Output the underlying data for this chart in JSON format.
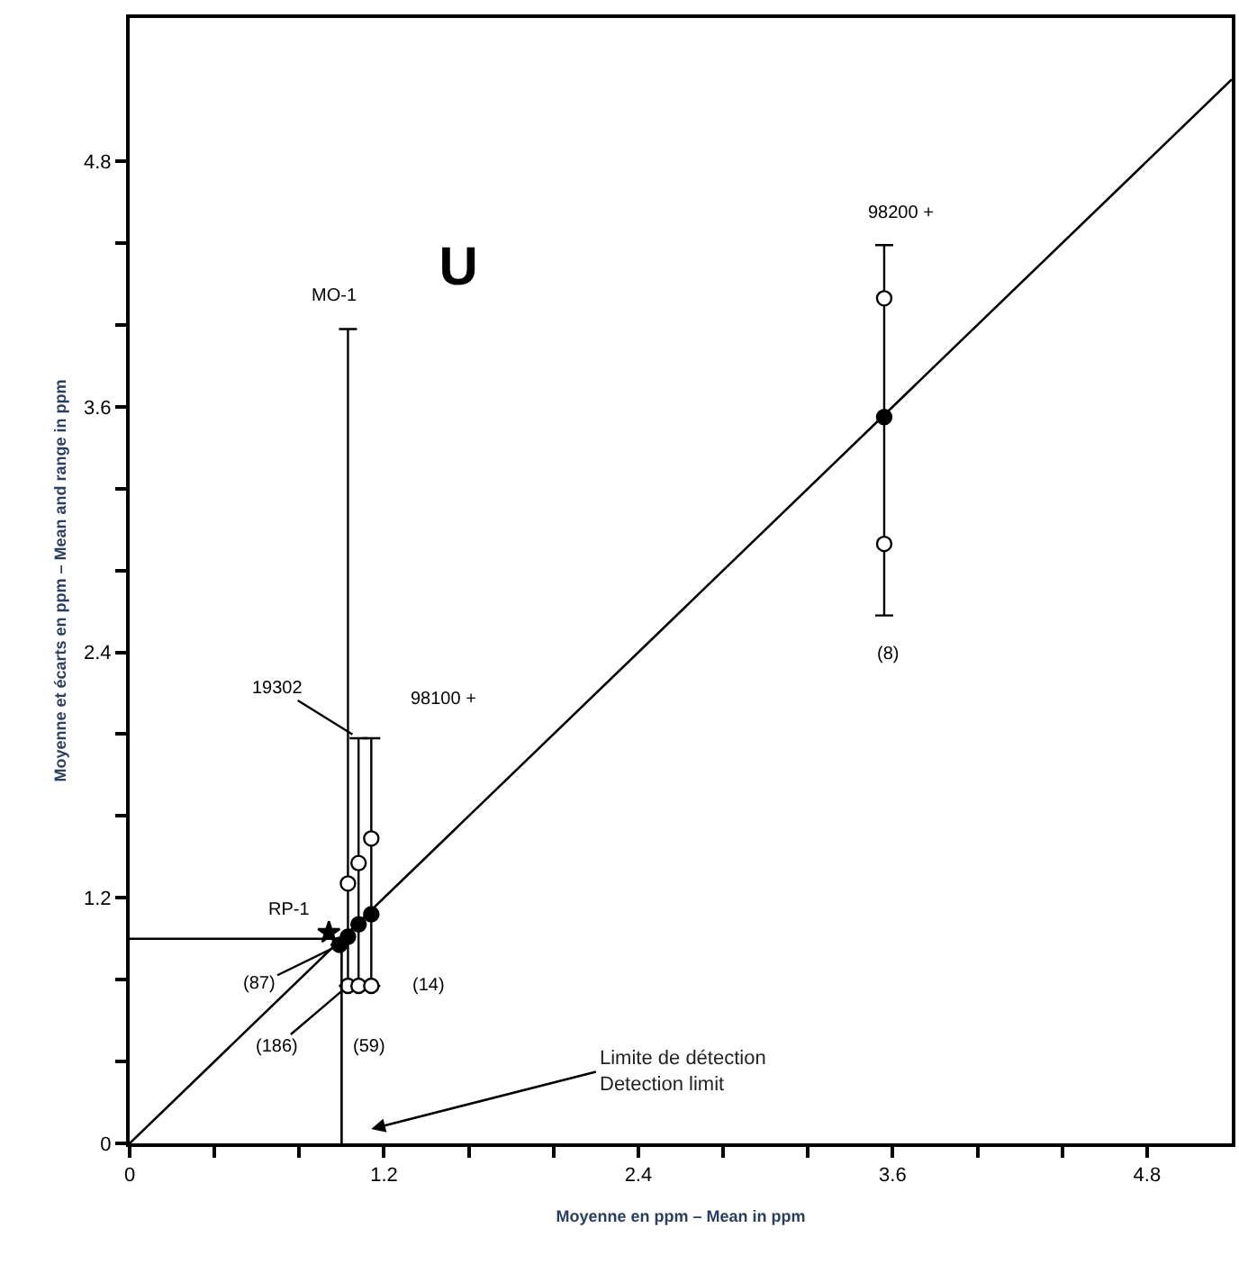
{
  "chart_data": {
    "type": "scatter",
    "title": "U",
    "xlabel": "Moyenne en ppm – Mean in ppm",
    "ylabel": "Moyenne et écarts en ppm – Mean and range in ppm",
    "xlim": [
      0,
      5.2
    ],
    "ylim": [
      0,
      5.5
    ],
    "xticks": [
      0,
      {
        "value": 0.4,
        "label": null
      },
      {
        "value": 0.8,
        "label": null
      },
      1.2,
      {
        "value": 1.6,
        "label": null
      },
      {
        "value": 2.0,
        "label": null
      },
      2.4,
      {
        "value": 2.8,
        "label": null
      },
      {
        "value": 3.2,
        "label": null
      },
      3.6,
      {
        "value": 4.0,
        "label": null
      },
      {
        "value": 4.4,
        "label": null
      },
      4.8
    ],
    "yticks": [
      0,
      {
        "value": 0.4,
        "label": null
      },
      {
        "value": 0.8,
        "label": null
      },
      1.2,
      {
        "value": 1.6,
        "label": null
      },
      {
        "value": 2.0,
        "label": null
      },
      2.4,
      {
        "value": 2.8,
        "label": null
      },
      {
        "value": 3.2,
        "label": null
      },
      3.6,
      {
        "value": 4.0,
        "label": null
      },
      {
        "value": 4.4,
        "label": null
      },
      4.8
    ],
    "series": [
      {
        "type": "line",
        "color": "#000000",
        "marker": "none",
        "x": [
          0,
          5.2
        ],
        "values": [
          0,
          5.2
        ]
      },
      {
        "color": "#000000",
        "marker": "circle",
        "x": [
          0.99,
          1.03,
          1.08,
          1.14,
          3.56
        ],
        "values": [
          0.97,
          1.01,
          1.07,
          1.12,
          3.55
        ],
        "errors": [
          null,
          [
            0.77,
            3.98
          ],
          [
            0.77,
            1.98
          ],
          [
            0.77,
            1.98
          ],
          [
            2.58,
            4.39
          ]
        ]
      },
      {
        "color": "#ffffff",
        "marker": "circle",
        "x": [
          1.03,
          1.08,
          1.14,
          3.56
        ],
        "values": [
          1.27,
          1.37,
          1.49,
          4.13
        ]
      },
      {
        "color": "#ffffff",
        "marker": "circle",
        "x": [
          1.03,
          1.08,
          1.14,
          3.56
        ],
        "values": [
          0.77,
          0.77,
          0.77,
          2.93
        ]
      },
      {
        "color": "#000000",
        "marker": "star",
        "x": [
          0.94
        ],
        "values": [
          1.03
        ]
      }
    ],
    "ref_lines": [
      {
        "axis": "x",
        "value": 1.0,
        "label": "Limite de détection\nDetection limit"
      },
      {
        "axis": "y",
        "value": 1.0
      }
    ],
    "annotations": [
      {
        "text": "MO-1",
        "x": 1.03,
        "y": 3.98
      },
      {
        "text": "98200 +",
        "x": 3.56,
        "y": 4.39
      },
      {
        "text": "19302",
        "x": 1.08,
        "y": 1.98
      },
      {
        "text": "98100 +",
        "x": 1.14,
        "y": 1.98
      },
      {
        "text": "RP-1",
        "x": 0.94,
        "y": 1.03
      },
      {
        "text": "(87)",
        "x": 0.99,
        "y": 0.97
      },
      {
        "text": "(186)",
        "x": 1.03,
        "y": 0.77
      },
      {
        "text": "(59)",
        "x": 1.08,
        "y": 0.77
      },
      {
        "text": "(14)",
        "x": 1.14,
        "y": 0.77
      },
      {
        "text": "(8)",
        "x": 3.56,
        "y": 2.58
      }
    ]
  }
}
